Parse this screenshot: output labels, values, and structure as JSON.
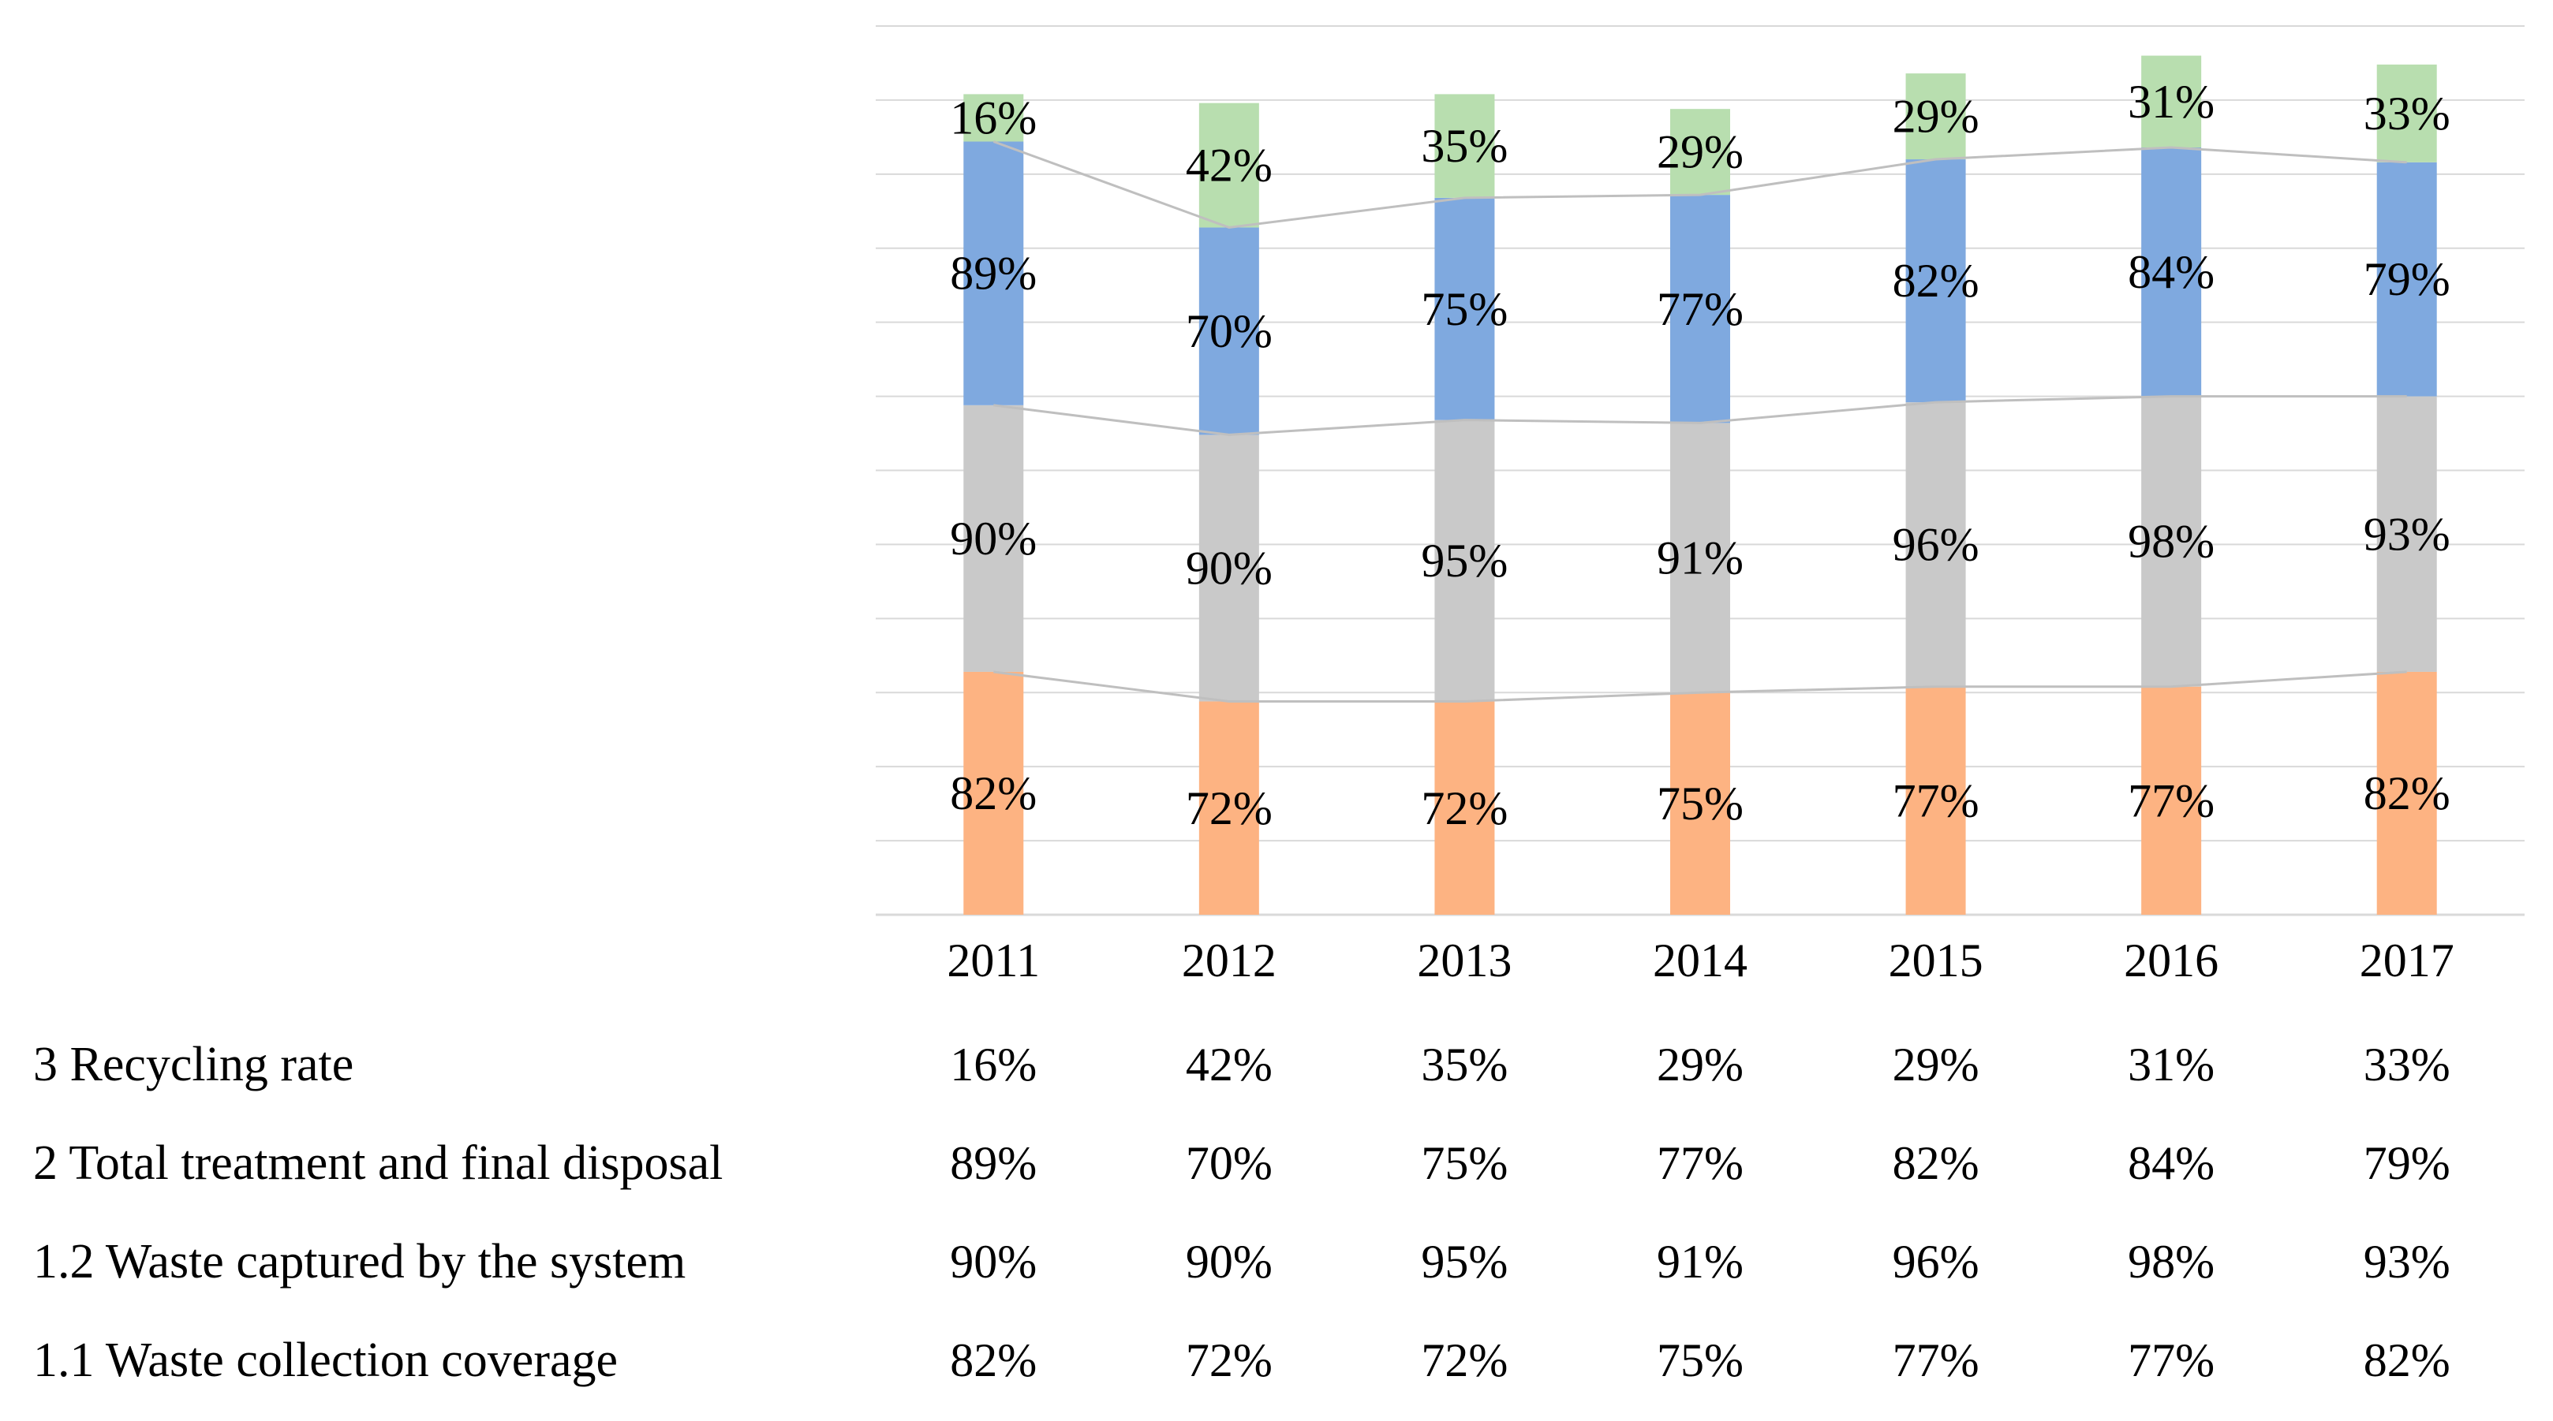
{
  "chart_data": {
    "type": "bar",
    "stacked": true,
    "categories": [
      "2011",
      "2012",
      "2013",
      "2014",
      "2015",
      "2016",
      "2017"
    ],
    "series": [
      {
        "name": "1.1 Waste collection coverage",
        "values": [
          82,
          72,
          72,
          75,
          77,
          77,
          82
        ],
        "labels": [
          "82%",
          "72%",
          "72%",
          "75%",
          "77%",
          "77%",
          "82%"
        ],
        "color": "#FDB382"
      },
      {
        "name": "1.2 Waste captured by the system",
        "values": [
          90,
          90,
          95,
          91,
          96,
          98,
          93
        ],
        "labels": [
          "90%",
          "90%",
          "95%",
          "91%",
          "96%",
          "98%",
          "93%"
        ],
        "color": "#C9C9C9"
      },
      {
        "name": "2 Total treatment and final disposal",
        "values": [
          89,
          70,
          75,
          77,
          82,
          84,
          79
        ],
        "labels": [
          "89%",
          "70%",
          "75%",
          "77%",
          "82%",
          "84%",
          "79%"
        ],
        "color": "#7FA9DF"
      },
      {
        "name": "3 Recycling rate",
        "values": [
          16,
          42,
          35,
          29,
          29,
          31,
          33
        ],
        "labels": [
          "16%",
          "42%",
          "35%",
          "29%",
          "29%",
          "31%",
          "33%"
        ],
        "color": "#B8DEAF"
      }
    ],
    "table_order": [
      3,
      2,
      1,
      0
    ],
    "title": "",
    "xlabel": "",
    "ylabel": "",
    "ylim": [
      0,
      300
    ],
    "grid": true,
    "legend": "data-table-below"
  },
  "colors": {
    "grid": "#D9D9D9",
    "series_lines": "#BFBFBF",
    "text": "#000000"
  }
}
